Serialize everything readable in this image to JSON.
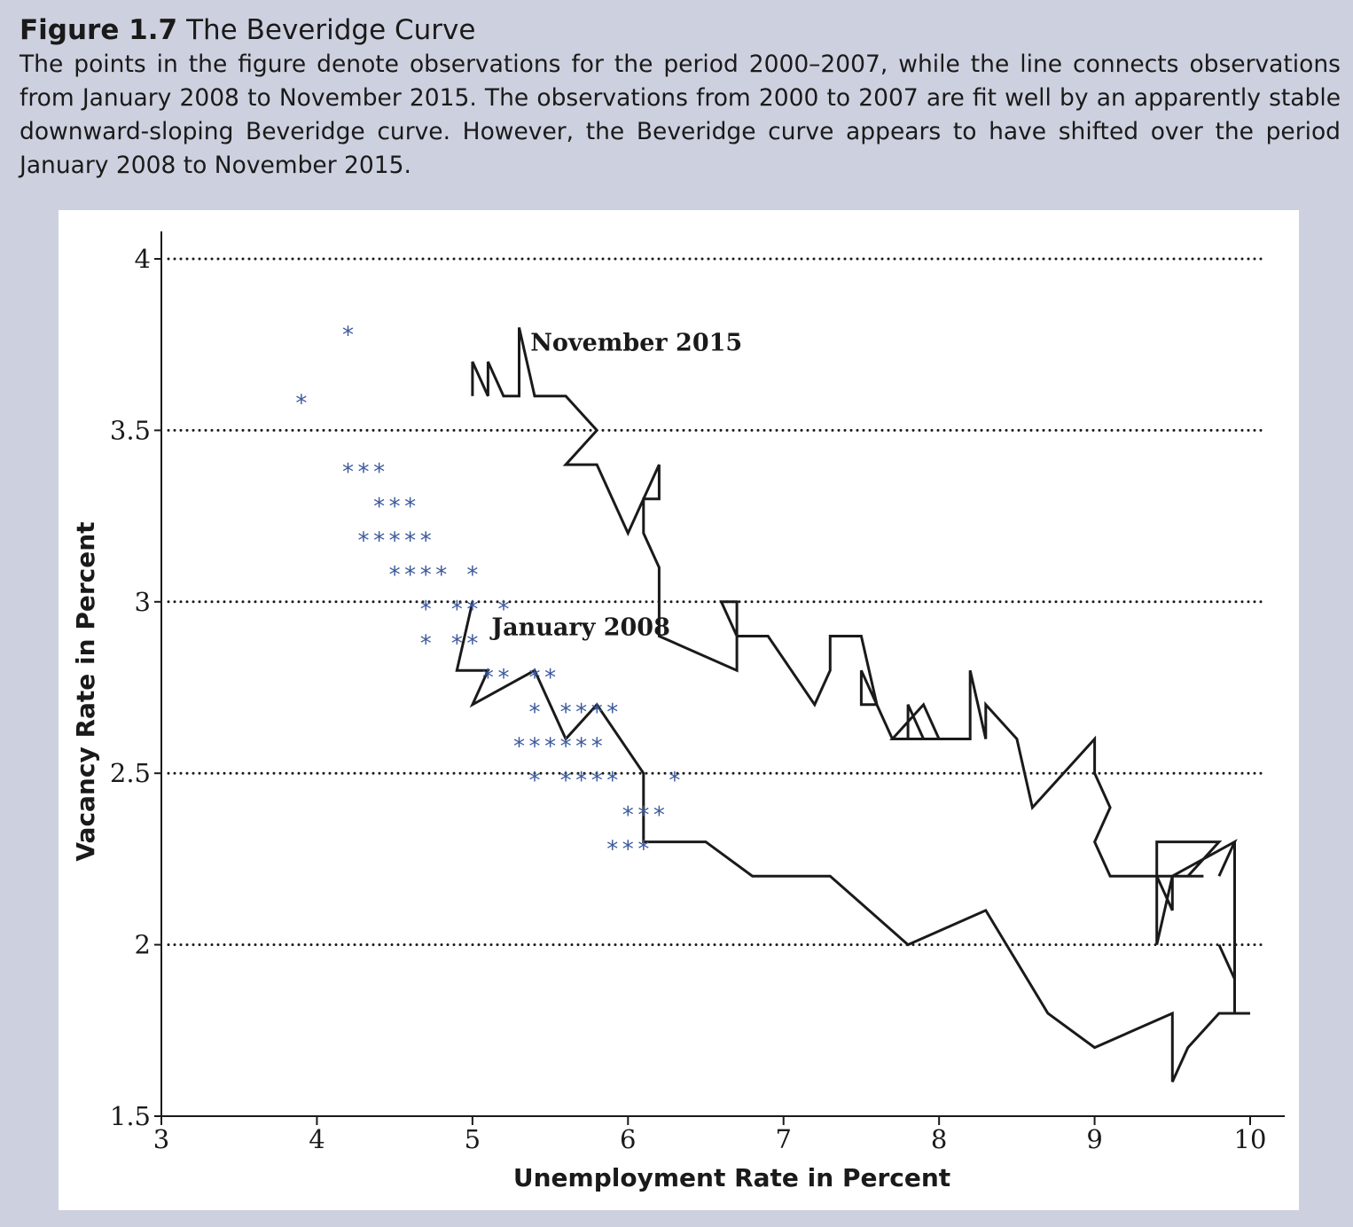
{
  "figure": {
    "label": "Figure 1.7",
    "title": "The Beveridge Curve",
    "caption": "The points in the figure denote observations for the period 2000–2007, while the line connects observations from January 2008 to November 2015. The observations from 2000 to 2007 are fit well by an apparently stable downward-sloping Beveridge curve. However, the Beveridge curve appears to have shifted over the period January 2008 to November 2015."
  },
  "chart_data": {
    "type": "scatter",
    "xlabel": "Unemployment Rate in Percent",
    "ylabel": "Vacancy Rate in Percent",
    "xlim": [
      3,
      10.2
    ],
    "ylim": [
      1.5,
      4.08
    ],
    "xticks": [
      3,
      4,
      5,
      6,
      7,
      8,
      9,
      10
    ],
    "yticks": [
      1.5,
      2,
      2.5,
      3,
      3.5,
      4
    ],
    "grid": "horizontal dotted",
    "colors": {
      "points": "#3d5a9b",
      "line": "#1a1a1a",
      "background": "#cdd1df"
    },
    "series": [
      {
        "kind": "points",
        "marker": "asterisk",
        "x": [
          4.2,
          3.9,
          4.2,
          4.3,
          4.4,
          4.4,
          4.5,
          4.6,
          4.3,
          4.4,
          4.5,
          4.6,
          4.7,
          4.5,
          4.6,
          4.7,
          4.8,
          5.0,
          4.7,
          4.9,
          5.0,
          5.2,
          4.7,
          4.9,
          5.0,
          5.1,
          5.2,
          5.4,
          5.5,
          5.4,
          5.6,
          5.7,
          5.8,
          5.9,
          5.3,
          5.4,
          5.5,
          5.6,
          5.7,
          5.8,
          5.4,
          5.6,
          5.7,
          5.8,
          5.9,
          6.3,
          6.0,
          6.1,
          6.2,
          5.9,
          6.0,
          6.1
        ],
        "y": [
          3.8,
          3.6,
          3.4,
          3.4,
          3.4,
          3.3,
          3.3,
          3.3,
          3.2,
          3.2,
          3.2,
          3.2,
          3.2,
          3.1,
          3.1,
          3.1,
          3.1,
          3.1,
          3.0,
          3.0,
          3.0,
          3.0,
          2.9,
          2.9,
          2.9,
          2.8,
          2.8,
          2.8,
          2.8,
          2.7,
          2.7,
          2.7,
          2.7,
          2.7,
          2.6,
          2.6,
          2.6,
          2.6,
          2.6,
          2.6,
          2.5,
          2.5,
          2.5,
          2.5,
          2.5,
          2.5,
          2.4,
          2.4,
          2.4,
          2.3,
          2.3,
          2.3
        ]
      },
      {
        "kind": "line",
        "x": [
          5.0,
          4.9,
          5.1,
          5.0,
          5.4,
          5.6,
          5.8,
          6.1,
          6.1,
          6.5,
          6.8,
          7.3,
          7.8,
          8.3,
          8.7,
          9.0,
          9.5,
          9.5,
          9.6,
          9.8,
          10.0,
          9.9,
          9.9,
          9.8,
          9.9,
          9.9,
          9.8,
          9.9,
          9.5,
          9.6,
          9.8,
          9.4,
          9.4,
          9.5,
          9.5,
          9.4,
          9.4,
          9.7,
          9.3,
          9.1,
          9.0,
          9.0,
          9.1,
          9.0,
          9.0,
          8.6,
          8.5,
          8.3,
          8.3,
          8.2,
          8.2,
          7.9,
          7.8,
          7.8,
          7.7,
          7.9,
          8.0,
          7.7,
          7.5,
          7.5,
          7.6,
          7.5,
          7.3,
          7.3,
          7.2,
          6.9,
          6.7,
          6.6,
          6.7,
          6.7,
          6.2,
          6.2,
          6.1,
          6.1,
          6.2,
          6.2,
          6.1,
          6.0,
          5.8,
          5.7,
          5.6,
          5.8,
          5.6,
          5.5,
          5.4,
          5.3,
          5.3,
          5.2,
          5.1,
          5.1,
          5.0,
          5.0
        ],
        "y": [
          3.0,
          2.8,
          2.8,
          2.7,
          2.8,
          2.6,
          2.7,
          2.5,
          2.3,
          2.3,
          2.2,
          2.2,
          2.0,
          2.1,
          1.8,
          1.7,
          1.8,
          1.6,
          1.7,
          1.8,
          1.8,
          1.8,
          1.9,
          2.0,
          1.9,
          2.3,
          2.2,
          2.3,
          2.2,
          2.2,
          2.3,
          2.3,
          2.0,
          2.2,
          2.1,
          2.2,
          2.2,
          2.2,
          2.2,
          2.2,
          2.3,
          2.3,
          2.4,
          2.5,
          2.6,
          2.4,
          2.6,
          2.7,
          2.6,
          2.8,
          2.6,
          2.6,
          2.7,
          2.6,
          2.6,
          2.7,
          2.6,
          2.6,
          2.8,
          2.7,
          2.7,
          2.9,
          2.9,
          2.8,
          2.7,
          2.9,
          2.9,
          3.0,
          3.0,
          2.8,
          2.9,
          3.1,
          3.2,
          3.3,
          3.3,
          3.4,
          3.3,
          3.2,
          3.4,
          3.4,
          3.4,
          3.5,
          3.6,
          3.6,
          3.6,
          3.8,
          3.6,
          3.6,
          3.7,
          3.6,
          3.7,
          3.6
        ]
      }
    ],
    "annotations": [
      {
        "text": "November 2015",
        "x": 5.35,
        "y": 3.75
      },
      {
        "text": "January 2008",
        "x": 5.1,
        "y": 2.92
      }
    ]
  }
}
